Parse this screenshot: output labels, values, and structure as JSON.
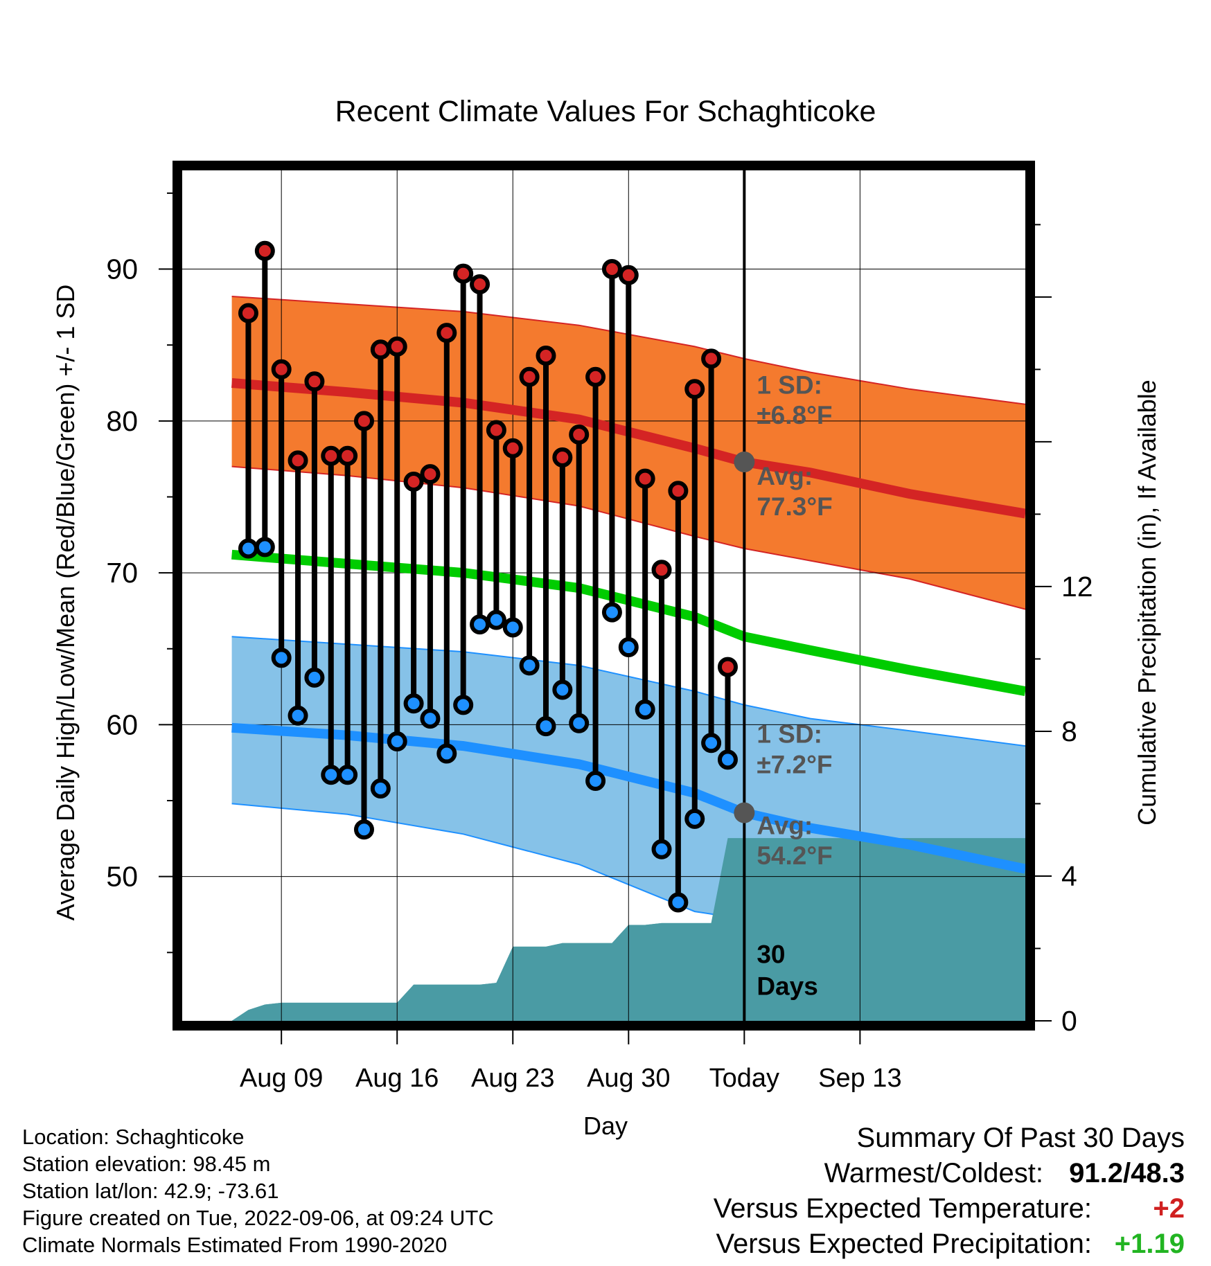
{
  "title": "Recent Climate Values For Schaghticoke",
  "colors": {
    "high_line": "#d42424",
    "high_band": "#f47a2e",
    "low_line": "#1e90ff",
    "low_band": "#86c2e8",
    "mean_line": "#00cc00",
    "precip": "#4a9ba4",
    "high_marker": "#d42424",
    "low_marker": "#1e90ff",
    "today_marker": "#555555",
    "annotation": "#555555"
  },
  "chart_data": {
    "type": "line",
    "title": "Recent Climate Values For Schaghticoke",
    "xlabel": "Day",
    "ylabel": "Average Daily High/Low/Mean (Red/Blue/Green) +/- 1 SD",
    "y2label": "Cumulative Precipitation (in), If Available",
    "x_range_days": [
      -34,
      17
    ],
    "x_ticks": [
      {
        "day": -28,
        "label": "Aug 09"
      },
      {
        "day": -21,
        "label": "Aug 16"
      },
      {
        "day": -14,
        "label": "Aug 23"
      },
      {
        "day": -7,
        "label": "Aug 30"
      },
      {
        "day": 0,
        "label": "Today"
      },
      {
        "day": 7,
        "label": "Sep 13"
      }
    ],
    "ylim": [
      40.5,
      96.5
    ],
    "yticks": [
      50,
      60,
      70,
      80,
      90
    ],
    "y2lim": [
      0,
      23.5
    ],
    "y2ticks": [
      0,
      4,
      8,
      12
    ],
    "grid": true,
    "daily_observations": {
      "days": [
        -30,
        -29,
        -28,
        -27,
        -26,
        -25,
        -24,
        -23,
        -22,
        -21,
        -20,
        -19,
        -18,
        -17,
        -16,
        -15,
        -14,
        -13,
        -12,
        -11,
        -10,
        -9,
        -8,
        -7,
        -6,
        -5,
        -4,
        -3,
        -2,
        -1
      ],
      "high": [
        87.1,
        91.2,
        83.4,
        77.4,
        82.6,
        77.7,
        77.7,
        80.0,
        84.7,
        84.9,
        76.0,
        76.5,
        85.8,
        89.7,
        89.0,
        79.4,
        78.2,
        82.9,
        84.3,
        77.6,
        79.1,
        82.9,
        90.0,
        89.6,
        76.2,
        70.2,
        75.4,
        82.1,
        84.1,
        63.8
      ],
      "low": [
        71.6,
        71.7,
        64.4,
        60.6,
        63.1,
        56.7,
        56.7,
        53.1,
        55.8,
        58.9,
        61.4,
        60.4,
        58.1,
        61.3,
        66.6,
        66.9,
        66.4,
        63.9,
        59.9,
        62.3,
        60.1,
        56.3,
        67.4,
        65.1,
        61.0,
        51.8,
        48.3,
        53.8,
        58.8,
        57.7
      ]
    },
    "normals": {
      "days": [
        -31,
        -24,
        -17,
        -10,
        -3,
        0,
        4,
        10,
        17
      ],
      "high_avg": [
        82.5,
        81.9,
        81.2,
        80.1,
        78.2,
        77.3,
        76.6,
        75.2,
        73.9
      ],
      "high_sd_upper": [
        88.2,
        87.7,
        87.2,
        86.3,
        84.9,
        84.1,
        83.2,
        82.1,
        81.1
      ],
      "high_sd_lower": [
        77.0,
        76.4,
        75.6,
        74.4,
        72.4,
        71.6,
        70.8,
        69.6,
        67.6
      ],
      "mean_avg": [
        71.2,
        70.6,
        70.0,
        69.0,
        67.1,
        65.8,
        64.9,
        63.6,
        62.2
      ],
      "low_avg": [
        59.8,
        59.3,
        58.6,
        57.4,
        55.5,
        54.2,
        53.2,
        52.1,
        50.5
      ],
      "low_sd_upper": [
        65.8,
        65.3,
        64.8,
        63.9,
        62.2,
        61.3,
        60.4,
        59.6,
        58.6
      ],
      "low_sd_lower": [
        54.8,
        54.1,
        52.8,
        50.8,
        47.7,
        47.2,
        47.5,
        48.3,
        49.5
      ]
    },
    "cumulative_precipitation": {
      "days": [
        -31,
        -30,
        -29,
        -28,
        -21,
        -20,
        -19,
        -18,
        -17,
        -16,
        -15,
        -14,
        -13,
        -12,
        -11,
        -10,
        -9,
        -8,
        -7,
        -6,
        -5,
        -4,
        -3,
        -2,
        -1,
        17
      ],
      "inches": [
        0.0,
        0.3,
        0.45,
        0.5,
        0.5,
        1.0,
        1.0,
        1.0,
        1.0,
        1.0,
        1.05,
        2.05,
        2.05,
        2.05,
        2.15,
        2.15,
        2.15,
        2.15,
        2.65,
        2.65,
        2.7,
        2.7,
        2.7,
        2.7,
        5.05,
        5.05
      ]
    },
    "today": {
      "day": 0,
      "high_avg": 77.3,
      "low_avg": 54.2
    },
    "annotations": {
      "high_sd_label": "1 SD:",
      "high_sd_value": "±6.8°F",
      "high_avg_label": "Avg:",
      "high_avg_value": "77.3°F",
      "low_sd_label": "1 SD:",
      "low_sd_value": "±7.2°F",
      "low_avg_label": "Avg:",
      "low_avg_value": "54.2°F",
      "days_label_1": "30",
      "days_label_2": "Days"
    }
  },
  "info": {
    "location": "Location: Schaghticoke",
    "elevation": "Station elevation: 98.45 m",
    "latlon": "Station lat/lon: 42.9; -73.61",
    "created": "Figure created on Tue, 2022-09-06, at 09:24 UTC",
    "normals": "Climate Normals Estimated From 1990-2020"
  },
  "summary": {
    "heading": "Summary Of Past 30 Days",
    "warm_cold_label": "Warmest/Coldest:",
    "warm_cold_value": "91.2/48.3",
    "temp_label": "Versus Expected Temperature:",
    "temp_value": "+2",
    "precip_label": "Versus Expected Precipitation:",
    "precip_value": "+1.19"
  }
}
